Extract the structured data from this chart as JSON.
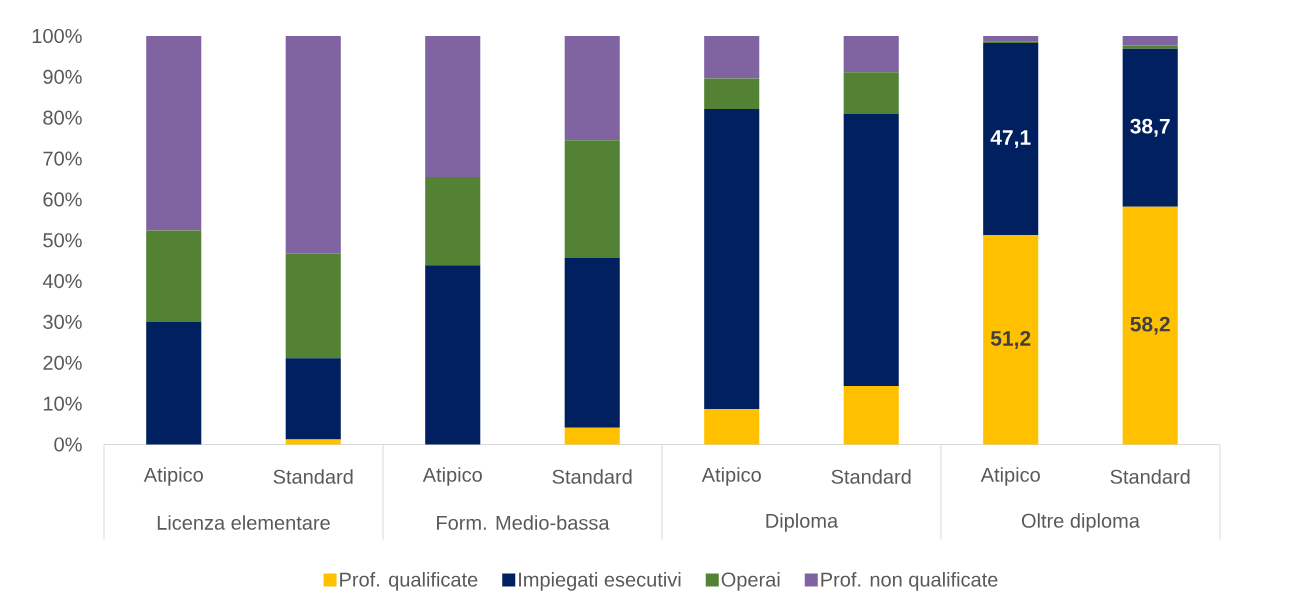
{
  "chart_data": {
    "type": "bar",
    "stacked": true,
    "categories": [
      "Atipico",
      "Standard",
      "Atipico",
      "Standard",
      "Atipico",
      "Standard",
      "Atipico",
      "Standard"
    ],
    "annotations": [
      "Licenza elementare",
      "Form. Medio-bassa",
      "Diploma",
      "Oltre diploma"
    ],
    "series": [
      {
        "name": "Prof. qualificate",
        "color": "#ffc000",
        "values": [
          0,
          1.2,
          0,
          4.1,
          8.6,
          14.3,
          51.2,
          58.2
        ],
        "value_labels": [
          null,
          null,
          null,
          null,
          null,
          null,
          "51,2",
          "58,2"
        ]
      },
      {
        "name": "Impiegati esecutivi",
        "color": "#002060",
        "values": [
          30.1,
          19.9,
          43.9,
          41.7,
          73.5,
          66.7,
          47.1,
          38.7
        ],
        "value_labels": [
          null,
          null,
          null,
          null,
          null,
          null,
          "47,1",
          "38,7"
        ]
      },
      {
        "name": "Operai",
        "color": "#548235",
        "values": [
          22.3,
          25.6,
          21.6,
          28.7,
          7.5,
          10.1,
          0.4,
          0.8
        ]
      },
      {
        "name": "Prof. non qualificate",
        "color": "#8064a2",
        "values": [
          47.6,
          53.3,
          34.5,
          25.5,
          10.4,
          8.9,
          1.3,
          2.3
        ]
      }
    ],
    "ylim": [
      0,
      100
    ],
    "yticks": [
      {
        "value": 0,
        "label": "0%"
      },
      {
        "value": 10,
        "label": "10%"
      },
      {
        "value": 20,
        "label": "20%"
      },
      {
        "value": 30,
        "label": "30%"
      },
      {
        "value": 40,
        "label": "40%"
      },
      {
        "value": 50,
        "label": "50%"
      },
      {
        "value": 60,
        "label": "60%"
      },
      {
        "value": 70,
        "label": "70%"
      },
      {
        "value": 80,
        "label": "80%"
      },
      {
        "value": 90,
        "label": "90%"
      },
      {
        "value": 100,
        "label": "100%"
      }
    ],
    "legend": "bottom"
  }
}
